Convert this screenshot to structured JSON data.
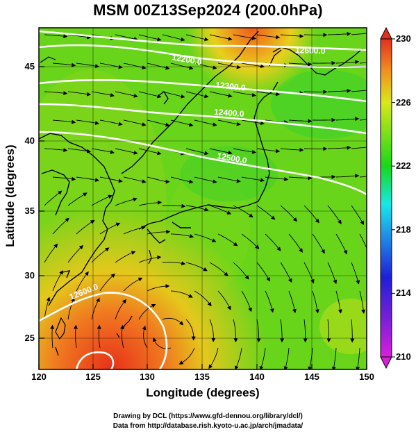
{
  "title": "MSM 00Z13Sep2024 (200.0hPa)",
  "x_axis": {
    "label": "Longitude (degrees)",
    "range": [
      120,
      150
    ],
    "ticks": [
      "120",
      "125",
      "130",
      "135",
      "140",
      "145",
      "150"
    ]
  },
  "y_axis": {
    "label": "Latitude  (degrees)",
    "range": [
      22.4,
      47.6
    ],
    "ticks": [
      "25",
      "30",
      "35",
      "40",
      "45"
    ]
  },
  "colorbar": {
    "range": [
      210,
      230
    ],
    "ticks": [
      "210",
      "214",
      "218",
      "222",
      "226",
      "230"
    ],
    "colors": [
      "#d81fd8",
      "#1f1fd8",
      "#18e8e8",
      "#18d818",
      "#d8e818",
      "#f08020",
      "#e03020"
    ]
  },
  "contours": [
    {
      "label": "12600.0",
      "lat": [
        46.2,
        46.0,
        45.6,
        45.0
      ]
    },
    {
      "label": "12200.0",
      "lat": [
        47.2,
        46.0,
        45.0
      ]
    },
    {
      "label": "12300.0",
      "lat": [
        44.8,
        44.4,
        44.0,
        43.6
      ]
    },
    {
      "label": "12400.0",
      "lat": [
        43.4,
        42.8,
        42.0,
        41.2
      ]
    },
    {
      "label": "12500.0",
      "lat": [
        41.4,
        40.4,
        39.4,
        38.4
      ]
    },
    {
      "label": "12600.0",
      "lat": [
        26.8,
        27.8
      ]
    }
  ],
  "credits": [
    "Drawing by DCL (https://www.gfd-dennou.org/library/dcl/)",
    "Data from http://database.rish.kyoto-u.ac.jp/arch/jmadata/"
  ]
}
